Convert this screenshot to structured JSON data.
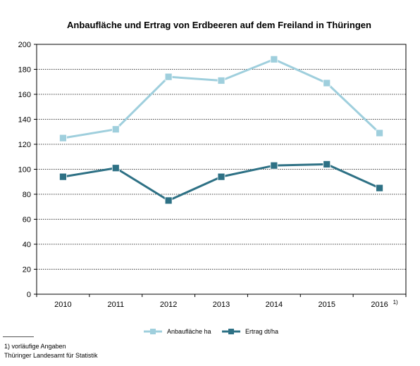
{
  "chart_data": {
    "type": "line",
    "title": "Anbaufläche und Ertrag von Erdbeeren auf dem Freiland in Thüringen",
    "categories": [
      "2010",
      "2011",
      "2012",
      "2013",
      "2014",
      "2015",
      "2016"
    ],
    "category_suffix": "1)",
    "ylim": [
      0,
      200
    ],
    "yticks": [
      0,
      20,
      40,
      60,
      80,
      100,
      120,
      140,
      160,
      180,
      200
    ],
    "grid": true,
    "legend_position": "bottom",
    "series": [
      {
        "name": "Anbaufläche ha",
        "color": "#9fcfdd",
        "values": [
          125,
          132,
          174,
          171,
          188,
          169,
          129
        ]
      },
      {
        "name": "Ertrag dt/ha",
        "color": "#2e7185",
        "values": [
          94,
          101,
          75,
          94,
          103,
          104,
          85
        ]
      }
    ]
  },
  "footnotes": {
    "note": "1) vorläufige Angaben",
    "source": "Thüringer Landesamt für Statistik"
  }
}
